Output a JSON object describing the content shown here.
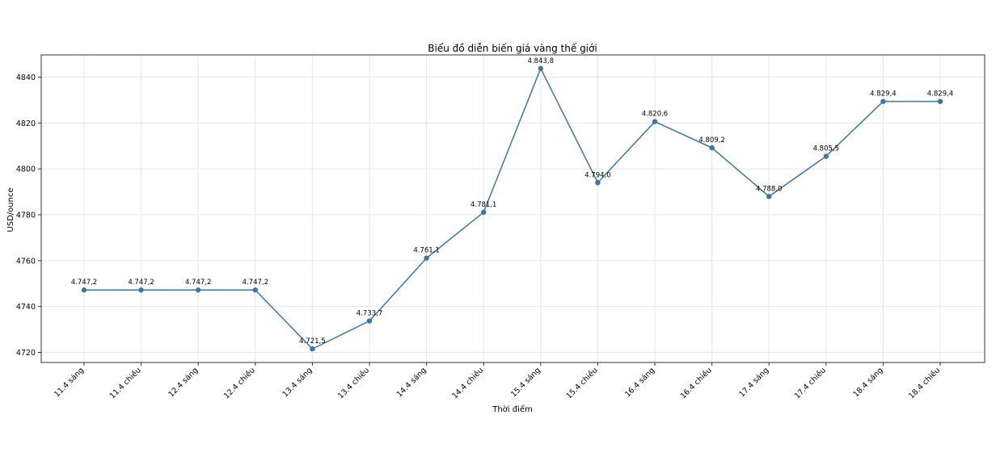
{
  "chart_data": {
    "type": "line",
    "title": "Biểu đồ diễn biến giá vàng thế giới",
    "xlabel": "Thời điểm",
    "ylabel": "USD/ounce",
    "categories": [
      "11.4 sáng",
      "11.4 chiều",
      "12.4 sáng",
      "12.4 chiều",
      "13.4 sáng",
      "13.4 chiều",
      "14.4 sáng",
      "14.4 chiều",
      "15.4 sáng",
      "15.4 chiều",
      "16.4 sáng",
      "16.4 chiều",
      "17.4 sáng",
      "17.4 chiều",
      "18.4 sáng",
      "18.4 chiều"
    ],
    "series": [
      {
        "values": [
          4747.2,
          4747.2,
          4747.2,
          4747.2,
          4721.5,
          4733.7,
          4761.1,
          4781.1,
          4843.8,
          4794.0,
          4820.6,
          4809.2,
          4788.0,
          4805.5,
          4829.4,
          4829.4
        ],
        "labels": [
          "4.747,2",
          "4.747,2",
          "4.747,2",
          "4.747,2",
          "4.721,5",
          "4.733,7",
          "4.761,1",
          "4.781,1",
          "4.843,8",
          "4.794,0",
          "4.820,6",
          "4.809,2",
          "4.788,0",
          "4.805,5",
          "4.829,4",
          "4.829,4"
        ]
      }
    ],
    "yticks": [
      4720,
      4740,
      4760,
      4780,
      4800,
      4820,
      4840
    ],
    "ylim": [
      4715.6,
      4849.7
    ],
    "grid": true,
    "line_color": "#3a76a8"
  }
}
